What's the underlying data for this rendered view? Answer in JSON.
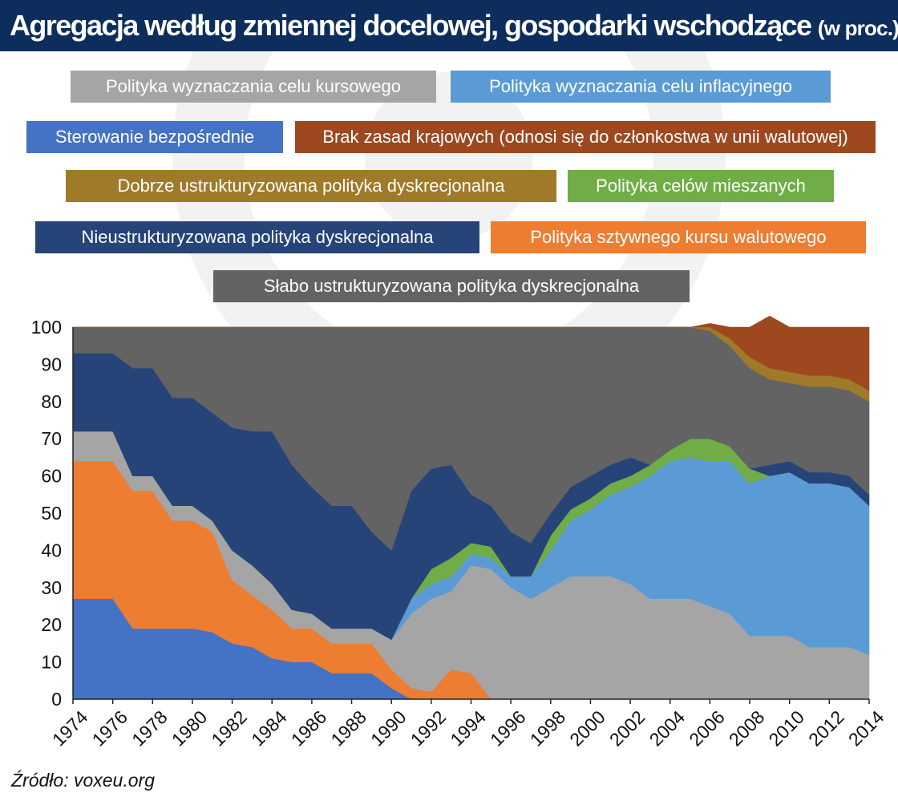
{
  "title": "Agregacja według zmiennej docelowej, gospodarki wschodzące",
  "title_unit": "(w proc.)",
  "source": "Źródło: voxeu.org",
  "colors": {
    "title_bar": "#0d2e5c"
  },
  "chart_data": {
    "type": "area",
    "stacked": true,
    "title": "Agregacja według zmiennej docelowej, gospodarki wschodzące (w proc.)",
    "xlabel": "",
    "ylabel": "",
    "ylim": [
      0,
      100
    ],
    "yticks": [
      0,
      10,
      20,
      30,
      40,
      50,
      60,
      70,
      80,
      90,
      100
    ],
    "xlim": [
      1974,
      2014
    ],
    "xticks": [
      "1974",
      "1976",
      "1978",
      "1980",
      "1982",
      "1984",
      "1986",
      "1988",
      "1990",
      "1992",
      "1994",
      "1996",
      "1998",
      "2000",
      "2002",
      "2004",
      "2006",
      "2008",
      "2010",
      "2012",
      "2014"
    ],
    "legend_position": "top",
    "grid": false,
    "x": [
      1974,
      1975,
      1976,
      1977,
      1978,
      1979,
      1980,
      1981,
      1982,
      1983,
      1984,
      1985,
      1986,
      1987,
      1988,
      1989,
      1990,
      1991,
      1992,
      1993,
      1994,
      1995,
      1996,
      1997,
      1998,
      1999,
      2000,
      2001,
      2002,
      2003,
      2004,
      2005,
      2006,
      2007,
      2008,
      2009,
      2010,
      2011,
      2012,
      2013,
      2014
    ],
    "series": [
      {
        "name": "Sterowanie bezpośrednie",
        "color": "#4472c4",
        "values": [
          27,
          27,
          27,
          19,
          19,
          19,
          19,
          18,
          15,
          14,
          11,
          10,
          10,
          7,
          7,
          7,
          3,
          0,
          0,
          0,
          0,
          0,
          0,
          0,
          0,
          0,
          0,
          0,
          0,
          0,
          0,
          0,
          0,
          0,
          0,
          0,
          0,
          0,
          0,
          0,
          0
        ]
      },
      {
        "name": "Polityka sztywnego kursu walutowego",
        "color": "#ed7d31",
        "values": [
          37,
          37,
          37,
          37,
          37,
          29,
          29,
          27,
          17,
          14,
          13,
          9,
          9,
          8,
          8,
          8,
          5,
          3,
          2,
          8,
          7,
          0,
          0,
          0,
          0,
          0,
          0,
          0,
          0,
          0,
          0,
          0,
          0,
          0,
          0,
          0,
          0,
          0,
          0,
          0,
          0
        ]
      },
      {
        "name": "Polityka wyznaczania celu kursowego",
        "color": "#a5a5a5",
        "values": [
          8,
          8,
          8,
          4,
          4,
          4,
          4,
          3,
          8,
          8,
          7,
          5,
          4,
          4,
          4,
          4,
          8,
          20,
          25,
          21,
          29,
          35,
          30,
          27,
          30,
          33,
          33,
          33,
          31,
          27,
          27,
          27,
          25,
          23,
          17,
          17,
          17,
          14,
          14,
          14,
          12
        ]
      },
      {
        "name": "Polityka wyznaczania celu inflacyjnego",
        "color": "#5b9bd5",
        "values": [
          0,
          0,
          0,
          0,
          0,
          0,
          0,
          0,
          0,
          0,
          0,
          0,
          0,
          0,
          0,
          0,
          0,
          4,
          4,
          4,
          3,
          3,
          3,
          6,
          10,
          15,
          18,
          22,
          26,
          33,
          37,
          38,
          39,
          41,
          41,
          43,
          44,
          44,
          44,
          43,
          40
        ]
      },
      {
        "name": "Polityka celów mieszanych",
        "color": "#70ad47",
        "values": [
          0,
          0,
          0,
          0,
          0,
          0,
          0,
          0,
          0,
          0,
          0,
          0,
          0,
          0,
          0,
          0,
          0,
          0,
          4,
          5,
          3,
          3,
          0,
          0,
          4,
          3,
          3,
          3,
          3,
          3,
          3,
          5,
          6,
          4,
          4,
          0,
          0,
          0,
          0,
          0,
          0
        ]
      },
      {
        "name": "Nieustrukturyzowana polityka dyskrecjonalna",
        "color": "#264478",
        "values": [
          21,
          21,
          21,
          29,
          29,
          29,
          29,
          29,
          33,
          36,
          41,
          39,
          34,
          33,
          33,
          26,
          24,
          29,
          27,
          25,
          13,
          11,
          12,
          9,
          6,
          6,
          6,
          5,
          5,
          0,
          0,
          0,
          0,
          0,
          0,
          3,
          3,
          3,
          3,
          3,
          3
        ]
      },
      {
        "name": "Słabo ustrukturyzowana polityka dyskrecjonalna",
        "color": "#636363",
        "values": [
          7,
          7,
          7,
          11,
          11,
          19,
          19,
          23,
          27,
          28,
          28,
          37,
          43,
          48,
          48,
          55,
          60,
          44,
          38,
          37,
          45,
          48,
          55,
          58,
          50,
          43,
          40,
          37,
          35,
          37,
          33,
          30,
          29,
          27,
          27,
          23,
          21,
          23,
          23,
          23,
          25
        ]
      },
      {
        "name": "Dobrze ustrukturyzowana polityka dyskrecjonalna",
        "color": "#9e7a29",
        "values": [
          0,
          0,
          0,
          0,
          0,
          0,
          0,
          0,
          0,
          0,
          0,
          0,
          0,
          0,
          0,
          0,
          0,
          0,
          0,
          0,
          0,
          0,
          0,
          0,
          0,
          0,
          0,
          0,
          0,
          0,
          0,
          0,
          1,
          2,
          3,
          3,
          3,
          3,
          3,
          3,
          3
        ]
      },
      {
        "name": "Brak zasad krajowych (odnosi się do członkostwa w unii walutowej)",
        "color": "#9e4820",
        "values": [
          0,
          0,
          0,
          0,
          0,
          0,
          0,
          0,
          0,
          0,
          0,
          0,
          0,
          0,
          0,
          0,
          0,
          0,
          0,
          0,
          0,
          0,
          0,
          0,
          0,
          0,
          0,
          0,
          0,
          0,
          0,
          0,
          1,
          3,
          8,
          14,
          12,
          13,
          13,
          14,
          17
        ]
      }
    ]
  },
  "legend": [
    {
      "label": "Polityka wyznaczania celu kursowego",
      "color": "#a5a5a5"
    },
    {
      "label": "Polityka wyznaczania celu inflacyjnego",
      "color": "#5b9bd5"
    },
    {
      "label": "Sterowanie bezpośrednie",
      "color": "#4472c4"
    },
    {
      "label": "Brak zasad krajowych (odnosi się do członkostwa w unii walutowej)",
      "color": "#9e4820"
    },
    {
      "label": "Dobrze ustrukturyzowana polityka dyskrecjonalna",
      "color": "#9e7a29"
    },
    {
      "label": "Polityka celów mieszanych",
      "color": "#70ad47"
    },
    {
      "label": "Nieustrukturyzowana polityka dyskrecjonalna",
      "color": "#264478"
    },
    {
      "label": "Polityka sztywnego kursu walutowego",
      "color": "#ed7d31"
    },
    {
      "label": "Słabo ustrukturyzowana polityka dyskrecjonalna",
      "color": "#636363"
    }
  ]
}
